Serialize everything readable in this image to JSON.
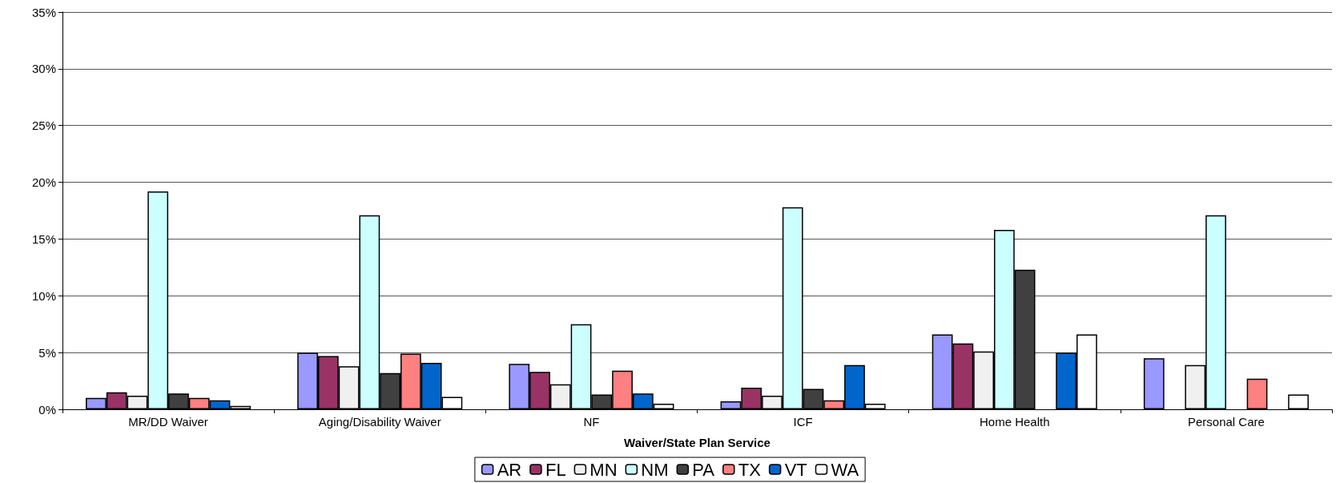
{
  "chart_data": {
    "type": "bar",
    "xlabel": "Waiver/State Plan Service",
    "categories": [
      "MR/DD Waiver",
      "Aging/Disability Waiver",
      "NF",
      "ICF",
      "Home Health",
      "Personal Care"
    ],
    "series": [
      {
        "name": "AR",
        "color": "#9999ff",
        "values": [
          1.0,
          5.0,
          4.0,
          0.7,
          6.6,
          4.5
        ]
      },
      {
        "name": "FL",
        "color": "#993366",
        "values": [
          1.5,
          4.7,
          3.3,
          1.9,
          5.8,
          null
        ]
      },
      {
        "name": "MN",
        "color": "#f0f0f0",
        "values": [
          1.2,
          3.8,
          2.2,
          1.2,
          5.1,
          3.9
        ]
      },
      {
        "name": "NM",
        "color": "#ccffff",
        "values": [
          19.2,
          17.1,
          7.5,
          17.8,
          15.8,
          17.1
        ]
      },
      {
        "name": "PA",
        "color": "#404040",
        "values": [
          1.4,
          3.2,
          1.3,
          1.8,
          12.3,
          null
        ]
      },
      {
        "name": "TX",
        "color": "#ff8080",
        "values": [
          1.0,
          4.9,
          3.4,
          0.8,
          null,
          2.7
        ]
      },
      {
        "name": "VT",
        "color": "#0066cc",
        "values": [
          0.8,
          4.1,
          1.4,
          3.9,
          5.0,
          null
        ]
      },
      {
        "name": "WA",
        "color": "#ffffff",
        "values": [
          0.3,
          1.1,
          0.5,
          0.5,
          6.6,
          1.3
        ]
      }
    ],
    "ylim": [
      0,
      35
    ],
    "yticks": [
      {
        "value": 0,
        "label": "0%"
      },
      {
        "value": 5,
        "label": "5%"
      },
      {
        "value": 10,
        "label": "10%"
      },
      {
        "value": 15,
        "label": "15%"
      },
      {
        "value": 20,
        "label": "20%"
      },
      {
        "value": 25,
        "label": "25%"
      },
      {
        "value": 30,
        "label": "30%"
      },
      {
        "value": 35,
        "label": "35%"
      }
    ],
    "grid": "y",
    "legend": "bottom"
  }
}
